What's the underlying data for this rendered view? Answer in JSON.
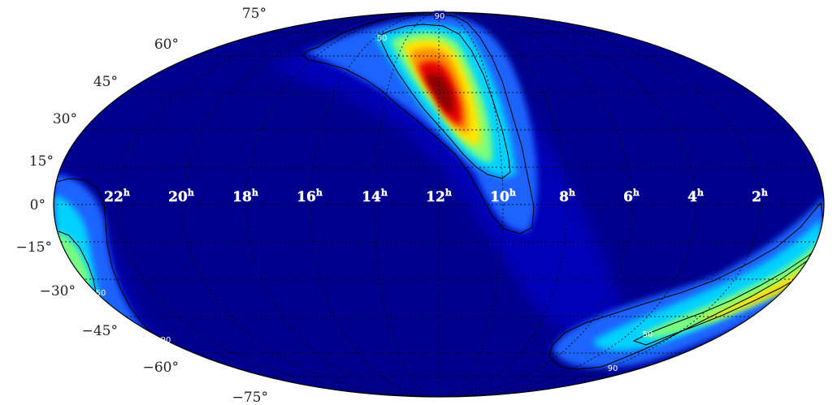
{
  "map": {
    "projection": "mollweide",
    "colormap": "jet",
    "colors": {
      "low": "#00008f",
      "frame": "#000000",
      "grid": "#000000",
      "high": "#800000"
    },
    "declination_labels": [
      "75°",
      "60°",
      "45°",
      "30°",
      "15°",
      "0°",
      "−15°",
      "−30°",
      "−45°",
      "−60°",
      "−75°"
    ],
    "ra_labels": [
      {
        "base": "22",
        "sup": "h"
      },
      {
        "base": "20",
        "sup": "h"
      },
      {
        "base": "18",
        "sup": "h"
      },
      {
        "base": "16",
        "sup": "h"
      },
      {
        "base": "14",
        "sup": "h"
      },
      {
        "base": "12",
        "sup": "h"
      },
      {
        "base": "10",
        "sup": "h"
      },
      {
        "base": "8",
        "sup": "h"
      },
      {
        "base": "6",
        "sup": "h"
      },
      {
        "base": "4",
        "sup": "h"
      },
      {
        "base": "2",
        "sup": "h"
      }
    ],
    "contour_labels": [
      "90",
      "50",
      "50",
      "90",
      "90",
      "50",
      "90"
    ]
  }
}
